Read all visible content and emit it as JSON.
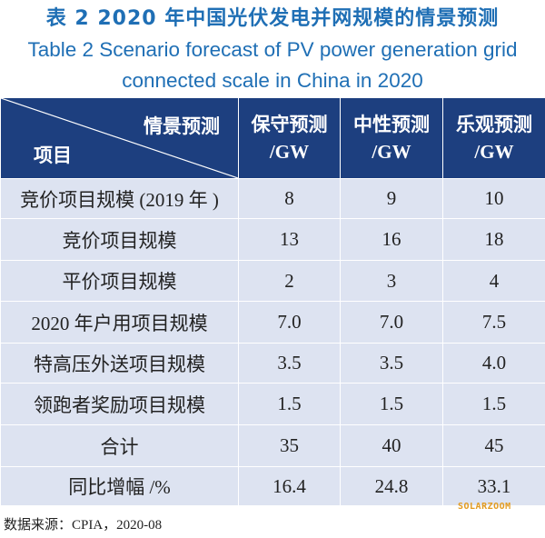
{
  "title_cn": "表 2  2020 年中国光伏发电并网规模的情景预测",
  "title_en_line1": "Table 2  Scenario forecast of PV power generation grid",
  "title_en_line2": "connected scale in China in 2020",
  "table": {
    "corner_top": "情景预测",
    "corner_bottom": "项目",
    "columns": [
      {
        "line1": "保守预测",
        "line2": "/GW"
      },
      {
        "line1": "中性预测",
        "line2": "/GW"
      },
      {
        "line1": "乐观预测",
        "line2": "/GW"
      }
    ],
    "rows": [
      {
        "label": "竞价项目规模 (2019 年 )",
        "values": [
          "8",
          "9",
          "10"
        ]
      },
      {
        "label": "竞价项目规模",
        "values": [
          "13",
          "16",
          "18"
        ]
      },
      {
        "label": "平价项目规模",
        "values": [
          "2",
          "3",
          "4"
        ]
      },
      {
        "label": "2020 年户用项目规模",
        "values": [
          "7.0",
          "7.0",
          "7.5"
        ]
      },
      {
        "label": "特高压外送项目规模",
        "values": [
          "3.5",
          "3.5",
          "4.0"
        ]
      },
      {
        "label": "领跑者奖励项目规模",
        "values": [
          "1.5",
          "1.5",
          "1.5"
        ]
      },
      {
        "label": "合计",
        "values": [
          "35",
          "40",
          "45"
        ]
      },
      {
        "label": "同比增幅 /%",
        "values": [
          "16.4",
          "24.8",
          "33.1"
        ]
      }
    ]
  },
  "watermark": "SOLARZOOM",
  "source": "数据来源：CPIA，2020-08",
  "colors": {
    "title": "#1f6fb5",
    "header_bg": "#1d3f7f",
    "cell_bg": "#dde3f1",
    "watermark": "#e39b1f"
  }
}
